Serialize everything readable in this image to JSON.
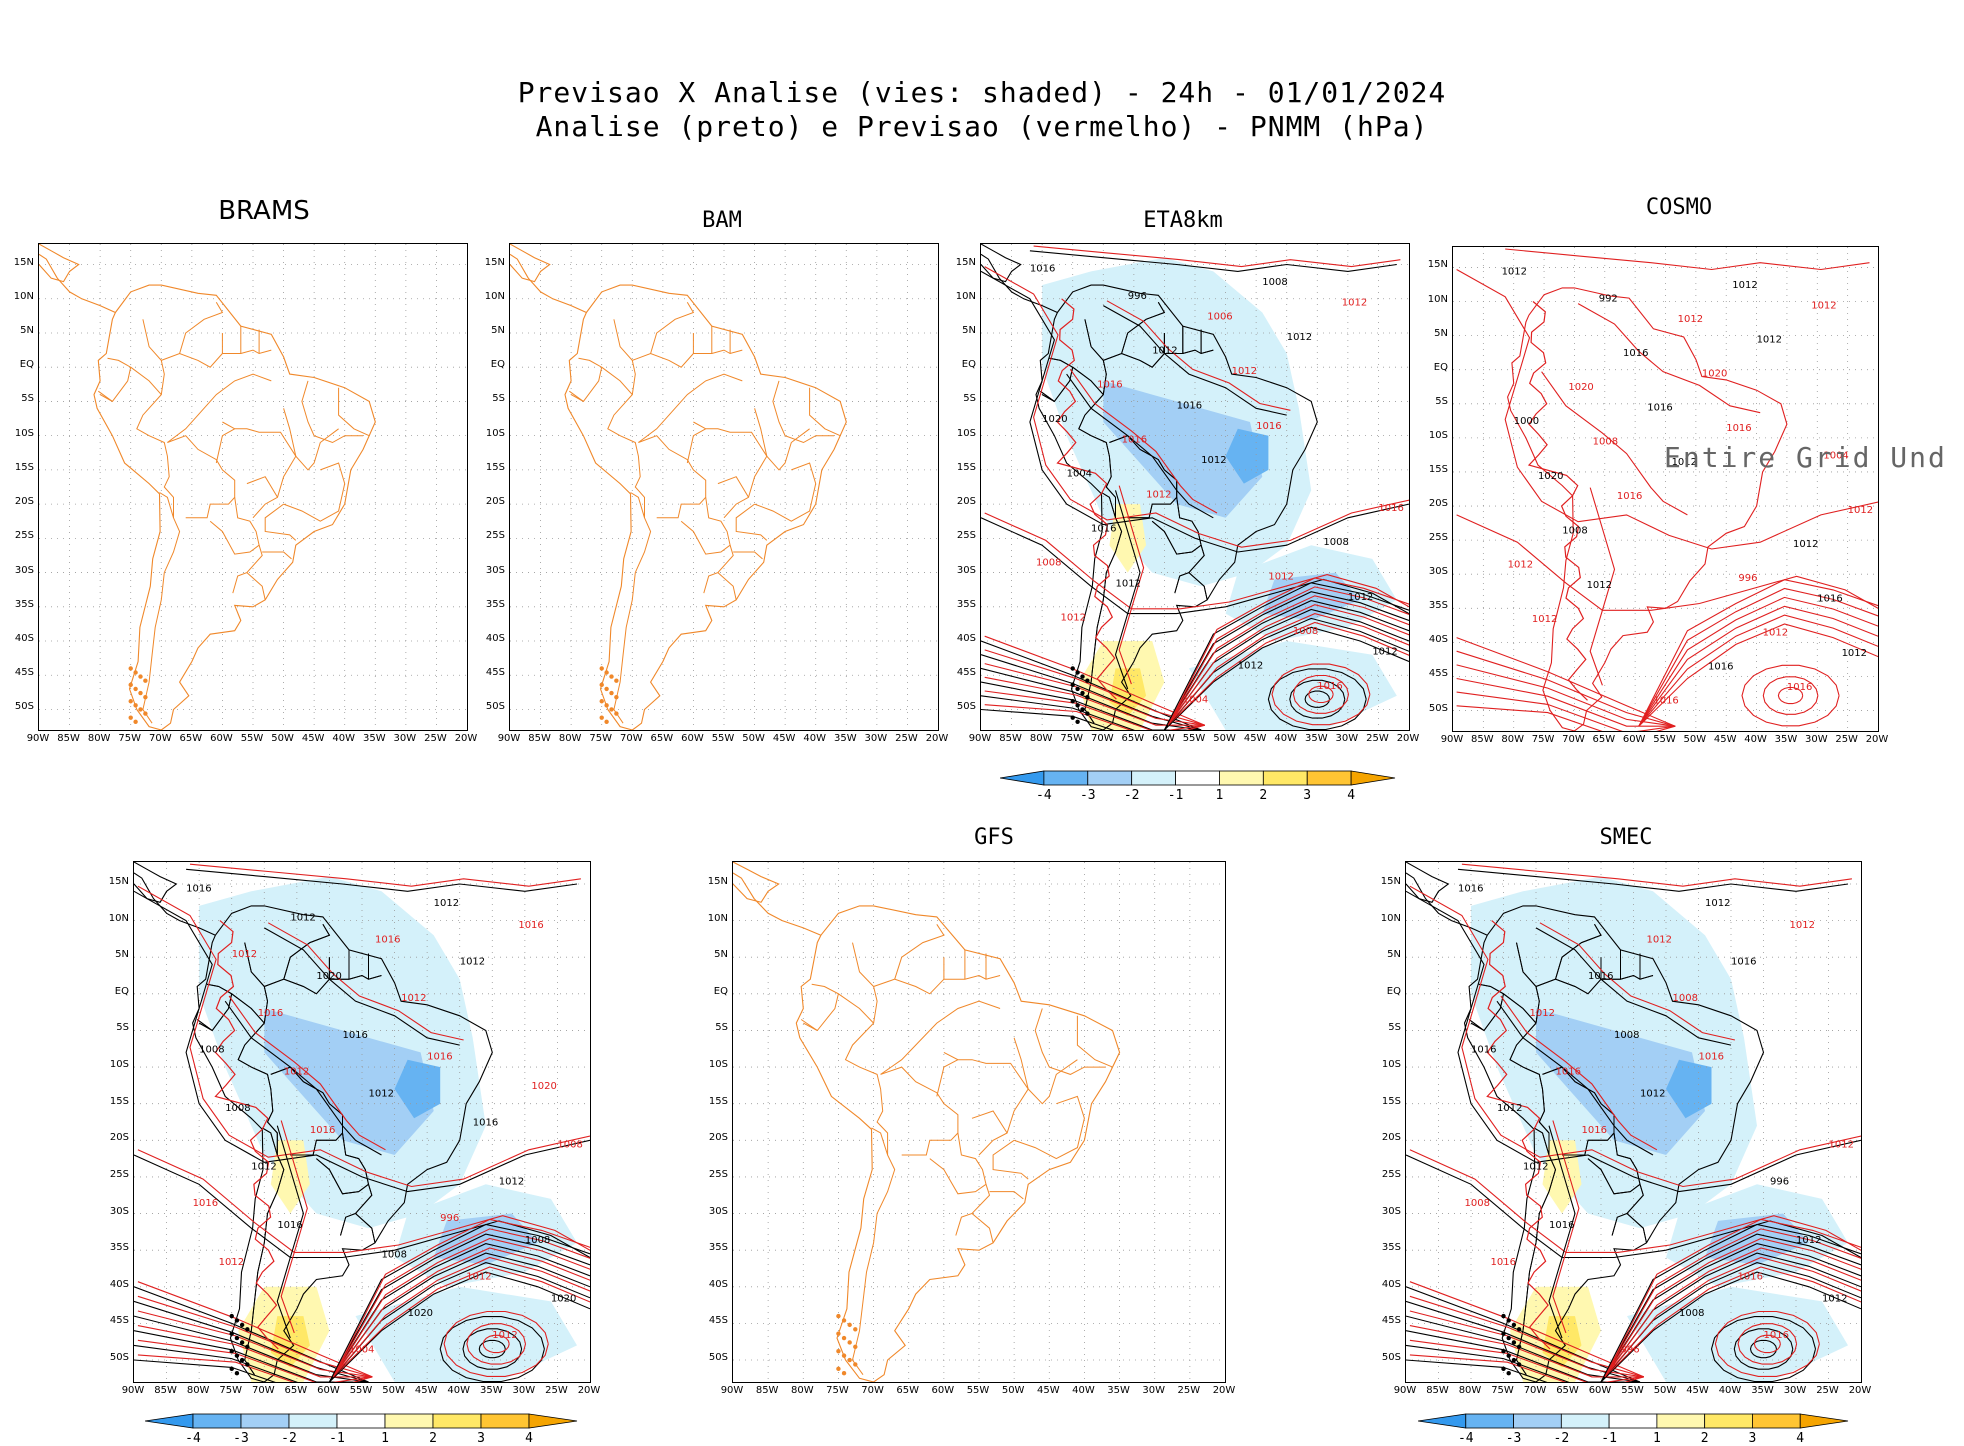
{
  "header": {
    "line1": "Previsao X Analise (vies: shaded) - 24h - 01/01/2024",
    "line2": "Analise (preto) e Previsao (vermelho) - PNMM (hPa)"
  },
  "panels": [
    {
      "id": "brams",
      "title": "BRAMS",
      "mode": "empty"
    },
    {
      "id": "bam",
      "title": "BAM",
      "mode": "empty"
    },
    {
      "id": "eta8km",
      "title": "ETA8km",
      "mode": "full"
    },
    {
      "id": "cosmo",
      "title": "COSMO",
      "mode": "cosmo",
      "overlay": "Entire Grid Und"
    },
    {
      "id": "unnamed",
      "title": "",
      "mode": "full"
    },
    {
      "id": "gfs",
      "title": "GFS",
      "mode": "empty"
    },
    {
      "id": "smec",
      "title": "SMEC",
      "mode": "full"
    }
  ],
  "axes": {
    "lat_labels": [
      "15N",
      "10N",
      "5N",
      "EQ",
      "5S",
      "10S",
      "15S",
      "20S",
      "25S",
      "30S",
      "35S",
      "40S",
      "45S",
      "50S"
    ],
    "lon_labels": [
      "90W",
      "85W",
      "80W",
      "75W",
      "70W",
      "65W",
      "60W",
      "55W",
      "50W",
      "45W",
      "40W",
      "35W",
      "30W",
      "25W",
      "20W"
    ]
  },
  "colorbar": {
    "labels": [
      "-4",
      "-3",
      "-2",
      "-1",
      "1",
      "2",
      "3",
      "4"
    ],
    "colors": [
      "#3399ee",
      "#66b3f2",
      "#a3cff5",
      "#d4f1fa",
      "#ffffff",
      "#fff8b0",
      "#ffe866",
      "#ffc533",
      "#f5a400"
    ]
  },
  "contour_labels": {
    "eta8km": [
      "1016",
      "1016",
      "1012",
      "1012",
      "1012",
      "1012",
      "1012",
      "1012",
      "1012",
      "1012",
      "1016",
      "1016",
      "1016",
      "1008",
      "1008",
      "1016",
      "1012",
      "1006",
      "1004",
      "1008",
      "1012",
      "1016",
      "1012",
      "1016",
      "1008",
      "1004",
      "1020",
      "1012",
      "996"
    ],
    "cosmo": [
      "1012",
      "1016",
      "1012",
      "1012",
      "1012",
      "1012",
      "1012",
      "1016",
      "1012",
      "1020",
      "1008",
      "1016",
      "1016",
      "1012",
      "1012",
      "1008",
      "1016",
      "1012",
      "1020",
      "1012",
      "1016",
      "1012",
      "1016",
      "1020",
      "1012",
      "1016",
      "1000",
      "996",
      "992",
      "1004"
    ],
    "unnamed": [
      "1016",
      "1016",
      "1016",
      "1016",
      "1012",
      "1012",
      "1012",
      "1016",
      "1020",
      "1012",
      "1012",
      "1012",
      "1016",
      "1016",
      "1012",
      "1012",
      "1008",
      "1016",
      "1008",
      "1012",
      "1020",
      "1008",
      "1020",
      "1016",
      "1012",
      "1004",
      "1008",
      "996",
      "1012",
      "1020",
      "1008",
      "1012",
      "1016"
    ],
    "smec": [
      "1016",
      "1016",
      "1016",
      "1012",
      "1012",
      "1016",
      "1016",
      "1016",
      "1012",
      "1008",
      "1012",
      "1016",
      "1008",
      "1008",
      "1012",
      "1016",
      "1012",
      "1012",
      "1012",
      "1016",
      "1016",
      "1012",
      "1008",
      "1012",
      "996",
      "996",
      "1016"
    ]
  },
  "colors": {
    "map_boundary": "#f0882a",
    "analysis_contour": "#000000",
    "forecast_contour": "#e02020"
  }
}
